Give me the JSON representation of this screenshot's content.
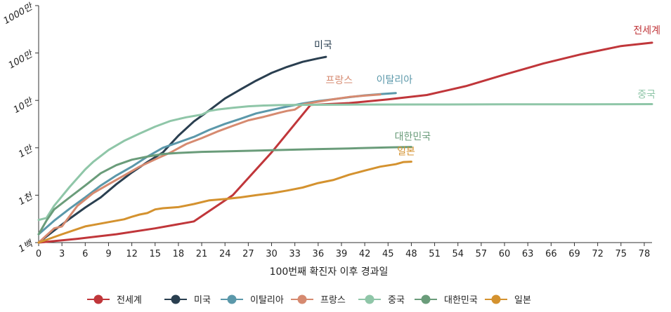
{
  "chart_data": {
    "type": "line",
    "title": "",
    "xlabel": "100번째 확진자 이후 경과일",
    "ylabel": "",
    "x_ticks": [
      0,
      3,
      6,
      9,
      12,
      15,
      18,
      21,
      24,
      27,
      30,
      33,
      36,
      39,
      42,
      45,
      48,
      51,
      54,
      57,
      60,
      63,
      66,
      69,
      72,
      75,
      78
    ],
    "xlim": [
      0,
      79
    ],
    "y_scale": "log",
    "ylim": [
      100,
      10000000
    ],
    "y_ticks": [
      {
        "value": 100,
        "label": "1백"
      },
      {
        "value": 1000,
        "label": "1천"
      },
      {
        "value": 10000,
        "label": "1만"
      },
      {
        "value": 100000,
        "label": "10만"
      },
      {
        "value": 1000000,
        "label": "100만"
      },
      {
        "value": 10000000,
        "label": "1000만"
      }
    ],
    "legend_position": "bottom",
    "series": [
      {
        "name": "전세계",
        "color": "#c0363a",
        "x": [
          0,
          5,
          10,
          15,
          20,
          25,
          30,
          35,
          40,
          45,
          50,
          55,
          60,
          65,
          70,
          75,
          79
        ],
        "y": [
          100,
          120,
          150,
          200,
          280,
          1000,
          8000,
          80000,
          88000,
          105000,
          130000,
          200000,
          350000,
          600000,
          950000,
          1400000,
          1650000
        ]
      },
      {
        "name": "미국",
        "color": "#2a3f50",
        "x": [
          0,
          2,
          4,
          6,
          8,
          10,
          12,
          14,
          16,
          18,
          20,
          22,
          24,
          26,
          28,
          30,
          32,
          34,
          36,
          37
        ],
        "y": [
          100,
          180,
          320,
          550,
          900,
          1700,
          3000,
          5000,
          8000,
          18000,
          36000,
          62000,
          110000,
          170000,
          260000,
          380000,
          510000,
          650000,
          770000,
          830000
        ]
      },
      {
        "name": "이탈리아",
        "color": "#5b98aa",
        "x": [
          0,
          2,
          4,
          6,
          8,
          10,
          12,
          14,
          16,
          18,
          20,
          22,
          24,
          26,
          28,
          30,
          32,
          34,
          36,
          38,
          40,
          42,
          44,
          46
        ],
        "y": [
          150,
          290,
          520,
          900,
          1600,
          2600,
          4000,
          6500,
          10000,
          13000,
          17000,
          24000,
          32000,
          41000,
          53000,
          63000,
          74000,
          86000,
          97000,
          106000,
          117000,
          128000,
          136000,
          143000
        ]
      },
      {
        "name": "프랑스",
        "color": "#d68a70",
        "x": [
          0,
          2,
          3,
          5,
          7,
          9,
          11,
          13,
          15,
          17,
          19,
          21,
          23,
          25,
          27,
          29,
          31,
          32,
          33,
          34,
          36,
          38,
          40,
          42,
          44
        ],
        "y": [
          100,
          200,
          220,
          600,
          1100,
          1700,
          2600,
          4000,
          5700,
          8000,
          12000,
          16000,
          22000,
          29000,
          38000,
          45000,
          55000,
          60000,
          64000,
          82000,
          94000,
          106000,
          118000,
          126000,
          133000
        ]
      },
      {
        "name": "중국",
        "color": "#8fc6a8",
        "x": [
          0,
          1,
          2,
          4,
          6,
          7,
          9,
          11,
          13,
          15,
          17,
          19,
          21,
          22,
          23,
          25,
          27,
          29,
          31,
          33,
          40,
          50,
          60,
          70,
          79
        ],
        "y": [
          300,
          330,
          600,
          1500,
          3500,
          5000,
          9000,
          14000,
          20000,
          28000,
          37000,
          44000,
          50000,
          60000,
          64000,
          70000,
          75000,
          78000,
          79500,
          80500,
          81500,
          82000,
          82500,
          83000,
          83500
        ]
      },
      {
        "name": "대한민국",
        "color": "#6a9c7a",
        "x": [
          0,
          1,
          2,
          4,
          6,
          8,
          10,
          12,
          14,
          16,
          18,
          21,
          25,
          30,
          35,
          40,
          45,
          48
        ],
        "y": [
          150,
          290,
          500,
          900,
          1600,
          2900,
          4300,
          5600,
          6500,
          7400,
          7800,
          8200,
          8500,
          8900,
          9300,
          9700,
          10200,
          10400
        ]
      },
      {
        "name": "일본",
        "color": "#d4922f",
        "x": [
          0,
          3,
          6,
          9,
          11,
          12,
          13,
          14,
          15,
          16,
          18,
          20,
          22,
          24,
          26,
          28,
          30,
          32,
          34,
          36,
          38,
          40,
          42,
          44,
          46,
          47,
          48
        ],
        "y": [
          100,
          150,
          220,
          270,
          310,
          350,
          390,
          420,
          500,
          530,
          560,
          650,
          780,
          830,
          900,
          1000,
          1100,
          1250,
          1450,
          1800,
          2100,
          2700,
          3300,
          4000,
          4500,
          5000,
          5100
        ]
      }
    ],
    "annotations": [
      {
        "series": "전세계",
        "text": "전세계"
      },
      {
        "series": "미국",
        "text": "미국"
      },
      {
        "series": "이탈리아",
        "text": "이탈리아"
      },
      {
        "series": "프랑스",
        "text": "프랑스"
      },
      {
        "series": "중국",
        "text": "중국"
      },
      {
        "series": "대한민국",
        "text": "대한민국"
      },
      {
        "series": "일본",
        "text": "일본"
      }
    ]
  }
}
